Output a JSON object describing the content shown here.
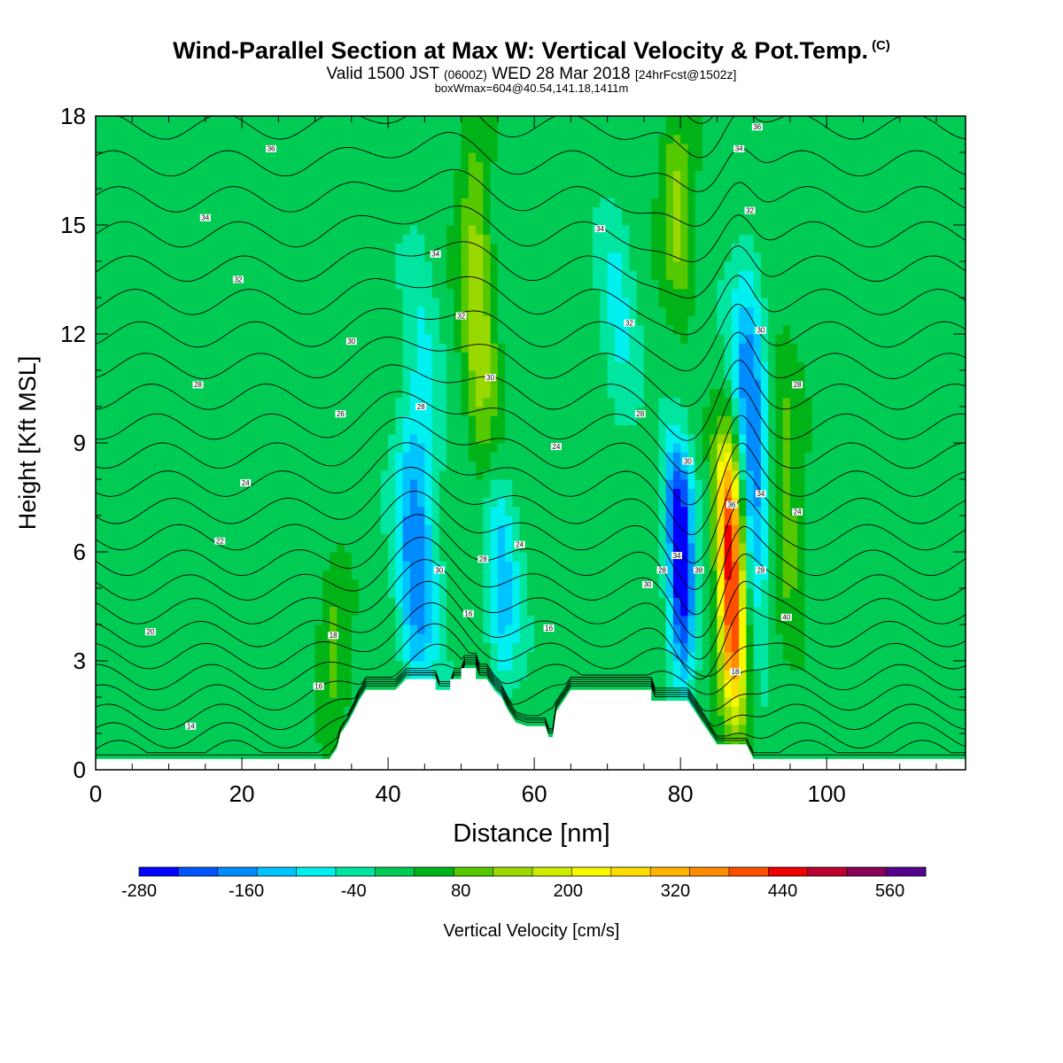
{
  "header": {
    "title": "Wind-Parallel Section at Max W: Vertical Velocity & Pot.Temp.",
    "copyright": "(C)",
    "subtitle_a": "Valid 1500 JST",
    "subtitle_b": "(0600Z)",
    "subtitle_c": "WED 28 Mar 2018",
    "subtitle_d": "[24hrFcst@1502z]",
    "subtitle2": "boxWmax=604@40.54,141.18,1411m"
  },
  "chart_data": {
    "type": "heatmap",
    "xlabel": "Distance [nm]",
    "ylabel": "Height [Kft MSL]",
    "xlim": [
      0,
      119
    ],
    "ylim": [
      0,
      18
    ],
    "x_ticks": [
      0,
      20,
      40,
      60,
      80,
      100
    ],
    "y_ticks": [
      0,
      3,
      6,
      9,
      12,
      15,
      18
    ],
    "colorbar": {
      "label": "Vertical Velocity [cm/s]",
      "min": -280,
      "max": 600,
      "step": 40,
      "tick_labels": [
        -280,
        -160,
        -40,
        80,
        200,
        320,
        440,
        560
      ],
      "colors": [
        "#0000ff",
        "#0055ff",
        "#008cff",
        "#00c4ff",
        "#00f0f0",
        "#00e6a0",
        "#00cc55",
        "#00b418",
        "#55c800",
        "#99d800",
        "#ccec00",
        "#f8f800",
        "#ffdc00",
        "#ffb400",
        "#ff8c00",
        "#ff5000",
        "#ee0000",
        "#bb0030",
        "#880058",
        "#55008c"
      ]
    },
    "velocity_features": [
      {
        "x": 33,
        "bottom": 1,
        "top": 5.5,
        "w": 80
      },
      {
        "x": 44,
        "bottom": 2,
        "top": 10,
        "w": -140
      },
      {
        "x": 46,
        "bottom": 3,
        "top": 15,
        "w": -60
      },
      {
        "x": 53,
        "bottom": 8,
        "top": 18,
        "w": 120
      },
      {
        "x": 56,
        "bottom": 2,
        "top": 8,
        "w": -110
      },
      {
        "x": 80.5,
        "bottom": 2.5,
        "top": 9,
        "w": -270
      },
      {
        "x": 87.5,
        "bottom": 1.5,
        "top": 9,
        "w": 420
      },
      {
        "x": 90.5,
        "bottom": 4,
        "top": 14,
        "w": -170
      },
      {
        "x": 95,
        "bottom": 4,
        "top": 11,
        "w": 90
      },
      {
        "x": 80,
        "bottom": 13,
        "top": 18,
        "w": 120
      },
      {
        "x": 72,
        "bottom": 9,
        "top": 16,
        "w": -60
      }
    ],
    "theta_levels": [
      14,
      16,
      18,
      20,
      22,
      24,
      26,
      28,
      30,
      32,
      34,
      36
    ],
    "contour_labels": [
      {
        "text": "36",
        "x": 24,
        "y": 17.1
      },
      {
        "text": "34",
        "x": 15,
        "y": 15.2
      },
      {
        "text": "32",
        "x": 19.5,
        "y": 13.5
      },
      {
        "text": "30",
        "x": 35,
        "y": 11.8
      },
      {
        "text": "28",
        "x": 14,
        "y": 10.6
      },
      {
        "text": "26",
        "x": 33.5,
        "y": 9.8
      },
      {
        "text": "24",
        "x": 20.5,
        "y": 7.9
      },
      {
        "text": "22",
        "x": 17,
        "y": 6.3
      },
      {
        "text": "20",
        "x": 7.5,
        "y": 3.8
      },
      {
        "text": "18",
        "x": 32.5,
        "y": 3.7
      },
      {
        "text": "16",
        "x": 30.5,
        "y": 2.3
      },
      {
        "text": "14",
        "x": 13,
        "y": 1.2
      },
      {
        "text": "34",
        "x": 46.5,
        "y": 14.2
      },
      {
        "text": "32",
        "x": 50,
        "y": 12.5
      },
      {
        "text": "28",
        "x": 44.5,
        "y": 10.0
      },
      {
        "text": "30",
        "x": 54,
        "y": 10.8
      },
      {
        "text": "24",
        "x": 63,
        "y": 8.9
      },
      {
        "text": "24",
        "x": 58,
        "y": 6.2
      },
      {
        "text": "28",
        "x": 53,
        "y": 5.8
      },
      {
        "text": "30",
        "x": 47,
        "y": 5.5
      },
      {
        "text": "16",
        "x": 51,
        "y": 4.3
      },
      {
        "text": "16",
        "x": 62,
        "y": 3.9
      },
      {
        "text": "34",
        "x": 69,
        "y": 14.9
      },
      {
        "text": "32",
        "x": 73,
        "y": 12.3
      },
      {
        "text": "28",
        "x": 74.5,
        "y": 9.8
      },
      {
        "text": "30",
        "x": 81,
        "y": 8.5
      },
      {
        "text": "28",
        "x": 77.5,
        "y": 5.5
      },
      {
        "text": "30",
        "x": 75.5,
        "y": 5.1
      },
      {
        "text": "34",
        "x": 79.5,
        "y": 5.9
      },
      {
        "text": "38",
        "x": 82.5,
        "y": 5.5
      },
      {
        "text": "36",
        "x": 87,
        "y": 7.3
      },
      {
        "text": "18",
        "x": 87.5,
        "y": 2.7
      },
      {
        "text": "36",
        "x": 90.5,
        "y": 17.7
      },
      {
        "text": "34",
        "x": 88,
        "y": 17.1
      },
      {
        "text": "32",
        "x": 89.5,
        "y": 15.4
      },
      {
        "text": "30",
        "x": 91,
        "y": 12.1
      },
      {
        "text": "28",
        "x": 96,
        "y": 10.6
      },
      {
        "text": "34",
        "x": 91,
        "y": 7.6
      },
      {
        "text": "24",
        "x": 96,
        "y": 7.1
      },
      {
        "text": "28",
        "x": 91,
        "y": 5.5
      },
      {
        "text": "40",
        "x": 94.5,
        "y": 4.2
      }
    ],
    "terrain": [
      [
        0,
        0.3
      ],
      [
        30,
        0.3
      ],
      [
        32,
        0.3
      ],
      [
        33,
        0.6
      ],
      [
        33.5,
        1.0
      ],
      [
        34.5,
        1.3
      ],
      [
        35.3,
        1.6
      ],
      [
        36,
        1.9
      ],
      [
        37,
        2.2
      ],
      [
        41,
        2.2
      ],
      [
        42.5,
        2.5
      ],
      [
        46.5,
        2.5
      ],
      [
        46.5,
        2.2
      ],
      [
        48.5,
        2.2
      ],
      [
        48.5,
        2.5
      ],
      [
        50,
        2.5
      ],
      [
        50,
        2.8
      ],
      [
        52,
        2.8
      ],
      [
        52,
        2.5
      ],
      [
        53.5,
        2.5
      ],
      [
        54.5,
        2.2
      ],
      [
        55.5,
        2.0
      ],
      [
        56.5,
        1.6
      ],
      [
        57.5,
        1.3
      ],
      [
        59,
        1.2
      ],
      [
        61.5,
        1.2
      ],
      [
        62,
        0.9
      ],
      [
        62.5,
        0.9
      ],
      [
        63,
        1.6
      ],
      [
        64,
        1.9
      ],
      [
        65,
        2.2
      ],
      [
        76,
        2.2
      ],
      [
        76,
        1.9
      ],
      [
        81,
        1.9
      ],
      [
        82,
        1.6
      ],
      [
        83,
        1.3
      ],
      [
        84,
        1.0
      ],
      [
        85,
        0.7
      ],
      [
        89,
        0.7
      ],
      [
        90,
        0.3
      ],
      [
        119,
        0.3
      ]
    ]
  }
}
